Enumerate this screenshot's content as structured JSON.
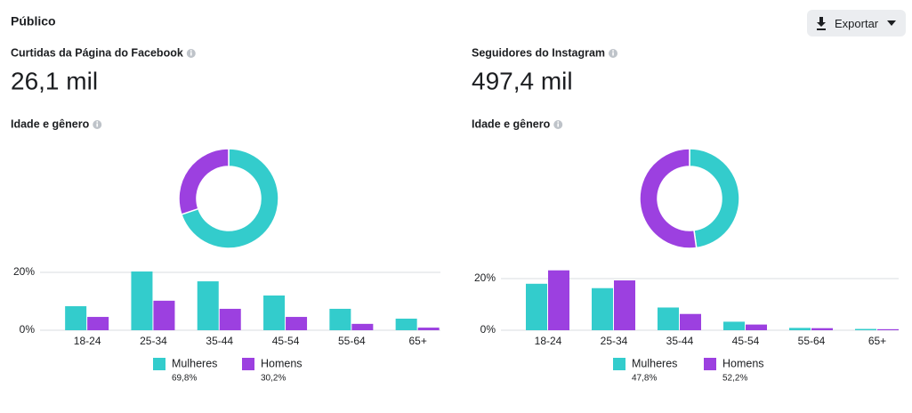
{
  "header": {
    "title": "Público",
    "export_label": "Exportar"
  },
  "panels": [
    {
      "title": "Curtidas da Página do Facebook",
      "metric": "26,1 mil",
      "section": "Idade e gênero"
    },
    {
      "title": "Seguidores do Instagram",
      "metric": "497,4 mil",
      "section": "Idade e gênero"
    }
  ],
  "chart_data": [
    {
      "type": "pie",
      "values": [
        69.8,
        30.2
      ],
      "value_labels": [
        "69,8%",
        "30,2%"
      ],
      "colors": [
        "#33cccc",
        "#9c40e0"
      ]
    },
    {
      "type": "bar",
      "categories": [
        "18-24",
        "25-34",
        "35-44",
        "45-54",
        "55-64",
        "65+"
      ],
      "series": [
        {
          "name": "Mulheres",
          "color": "#33cccc",
          "values": [
            8.3,
            20.3,
            16.9,
            12.0,
            7.4,
            4.0
          ]
        },
        {
          "name": "Homens",
          "color": "#9c40e0",
          "values": [
            4.6,
            10.2,
            7.4,
            4.6,
            2.2,
            0.9
          ]
        }
      ],
      "ylim": [
        0,
        22
      ],
      "yticks": [
        {
          "value": 0,
          "label": "0%"
        },
        {
          "value": 20,
          "label": "20%"
        }
      ],
      "grid": true
    },
    {
      "type": "pie",
      "values": [
        47.8,
        52.2
      ],
      "value_labels": [
        "47,8%",
        "52,2%"
      ],
      "colors": [
        "#33cccc",
        "#9c40e0"
      ]
    },
    {
      "type": "bar",
      "categories": [
        "18-24",
        "25-34",
        "35-44",
        "45-54",
        "55-64",
        "65+"
      ],
      "series": [
        {
          "name": "Mulheres",
          "color": "#33cccc",
          "values": [
            18.0,
            16.3,
            8.8,
            3.3,
            0.9,
            0.5
          ]
        },
        {
          "name": "Homens",
          "color": "#9c40e0",
          "values": [
            23.2,
            19.3,
            6.3,
            2.2,
            0.8,
            0.4
          ]
        }
      ],
      "ylim": [
        0,
        24
      ],
      "yticks": [
        {
          "value": 0,
          "label": "0%"
        },
        {
          "value": 20,
          "label": "20%"
        }
      ],
      "grid": true
    }
  ]
}
